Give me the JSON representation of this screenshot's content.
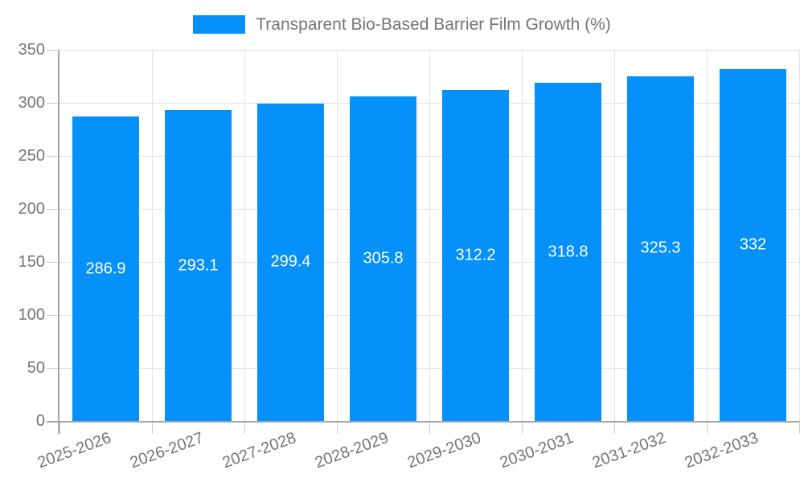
{
  "legend": {
    "label": "Transparent Bio-Based Barrier Film Growth (%)"
  },
  "chart_data": {
    "type": "bar",
    "title": "Transparent Bio-Based Barrier Film Growth (%)",
    "categories": [
      "2025-2026",
      "2026-2027",
      "2027-2028",
      "2028-2029",
      "2029-2030",
      "2030-2031",
      "2031-2032",
      "2032-2033"
    ],
    "values": [
      286.9,
      293.1,
      299.4,
      305.8,
      312.2,
      318.8,
      325.3,
      332
    ],
    "bar_labels": [
      "286.9",
      "293.1",
      "299.4",
      "305.8",
      "312.2",
      "318.8",
      "325.3",
      "332"
    ],
    "xlabel": "",
    "ylabel": "",
    "ylim": [
      0,
      350
    ],
    "ytick_step": 50,
    "ytick_labels": [
      "0",
      "50",
      "100",
      "150",
      "200",
      "250",
      "300",
      "350"
    ],
    "grid": true,
    "legend_position": "top-center",
    "x_label_rotation_deg": -20,
    "colors": {
      "bar": "#0590fa",
      "bar_label_text": "#ffffff",
      "axis_text": "#757575",
      "grid_line": "#e2e2e2",
      "axis_line": "#a6a6a6",
      "tick_line": "#c9c9c9",
      "background": "#ffffff"
    }
  }
}
